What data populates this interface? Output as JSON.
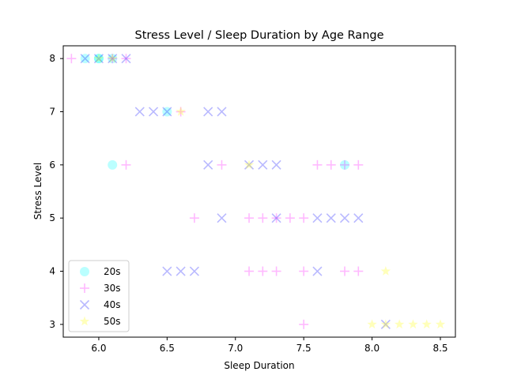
{
  "chart_data": {
    "type": "scatter",
    "title": "Stress Level / Sleep Duration by Age Range",
    "xlabel": "Sleep Duration",
    "ylabel": "Stress Level",
    "xlim": [
      5.74,
      8.61
    ],
    "ylim": [
      2.76,
      8.24
    ],
    "xticks": [
      "6.0",
      "6.5",
      "7.0",
      "7.5",
      "8.0",
      "8.5"
    ],
    "yticks": [
      "3",
      "4",
      "5",
      "6",
      "7",
      "8"
    ],
    "grid": false,
    "legend": {
      "placement": "lower-left",
      "entries": [
        "20s",
        "30s",
        "40s",
        "50s"
      ]
    },
    "series": [
      {
        "name": "20s",
        "marker": "circle",
        "color": "#00ffff",
        "points": [
          {
            "x": 5.9,
            "y": 8
          },
          {
            "x": 6.0,
            "y": 8
          },
          {
            "x": 6.1,
            "y": 8
          },
          {
            "x": 6.0,
            "y": 8
          },
          {
            "x": 6.1,
            "y": 6
          },
          {
            "x": 7.8,
            "y": 6
          },
          {
            "x": 6.5,
            "y": 7
          }
        ]
      },
      {
        "name": "30s",
        "marker": "plus",
        "color": "#ff00ff",
        "points": [
          {
            "x": 5.8,
            "y": 8
          },
          {
            "x": 6.1,
            "y": 8
          },
          {
            "x": 6.2,
            "y": 8
          },
          {
            "x": 6.6,
            "y": 7
          },
          {
            "x": 6.2,
            "y": 6
          },
          {
            "x": 6.9,
            "y": 6
          },
          {
            "x": 7.6,
            "y": 6
          },
          {
            "x": 7.7,
            "y": 6
          },
          {
            "x": 7.8,
            "y": 6
          },
          {
            "x": 7.9,
            "y": 6
          },
          {
            "x": 6.7,
            "y": 5
          },
          {
            "x": 7.1,
            "y": 5
          },
          {
            "x": 7.2,
            "y": 5
          },
          {
            "x": 7.3,
            "y": 5
          },
          {
            "x": 7.4,
            "y": 5
          },
          {
            "x": 7.5,
            "y": 5
          },
          {
            "x": 7.1,
            "y": 4
          },
          {
            "x": 7.2,
            "y": 4
          },
          {
            "x": 7.3,
            "y": 4
          },
          {
            "x": 7.5,
            "y": 4
          },
          {
            "x": 7.8,
            "y": 4
          },
          {
            "x": 7.9,
            "y": 4
          },
          {
            "x": 7.5,
            "y": 3
          }
        ]
      },
      {
        "name": "40s",
        "marker": "x",
        "color": "#0000ff",
        "points": [
          {
            "x": 5.9,
            "y": 8
          },
          {
            "x": 6.0,
            "y": 8
          },
          {
            "x": 6.1,
            "y": 8
          },
          {
            "x": 6.2,
            "y": 8
          },
          {
            "x": 6.3,
            "y": 7
          },
          {
            "x": 6.4,
            "y": 7
          },
          {
            "x": 6.5,
            "y": 7
          },
          {
            "x": 6.8,
            "y": 7
          },
          {
            "x": 6.9,
            "y": 7
          },
          {
            "x": 6.8,
            "y": 6
          },
          {
            "x": 7.1,
            "y": 6
          },
          {
            "x": 7.2,
            "y": 6
          },
          {
            "x": 7.3,
            "y": 6
          },
          {
            "x": 6.9,
            "y": 5
          },
          {
            "x": 7.3,
            "y": 5
          },
          {
            "x": 7.6,
            "y": 5
          },
          {
            "x": 7.7,
            "y": 5
          },
          {
            "x": 7.8,
            "y": 5
          },
          {
            "x": 7.9,
            "y": 5
          },
          {
            "x": 6.5,
            "y": 4
          },
          {
            "x": 6.6,
            "y": 4
          },
          {
            "x": 6.7,
            "y": 4
          },
          {
            "x": 7.6,
            "y": 4
          },
          {
            "x": 8.1,
            "y": 3
          }
        ]
      },
      {
        "name": "50s",
        "marker": "star",
        "color": "#ffff00",
        "points": [
          {
            "x": 6.0,
            "y": 8
          },
          {
            "x": 6.1,
            "y": 8
          },
          {
            "x": 6.6,
            "y": 7
          },
          {
            "x": 7.1,
            "y": 6
          },
          {
            "x": 8.1,
            "y": 4
          },
          {
            "x": 8.0,
            "y": 3
          },
          {
            "x": 8.1,
            "y": 3
          },
          {
            "x": 8.2,
            "y": 3
          },
          {
            "x": 8.3,
            "y": 3
          },
          {
            "x": 8.4,
            "y": 3
          },
          {
            "x": 8.5,
            "y": 3
          }
        ]
      }
    ]
  }
}
